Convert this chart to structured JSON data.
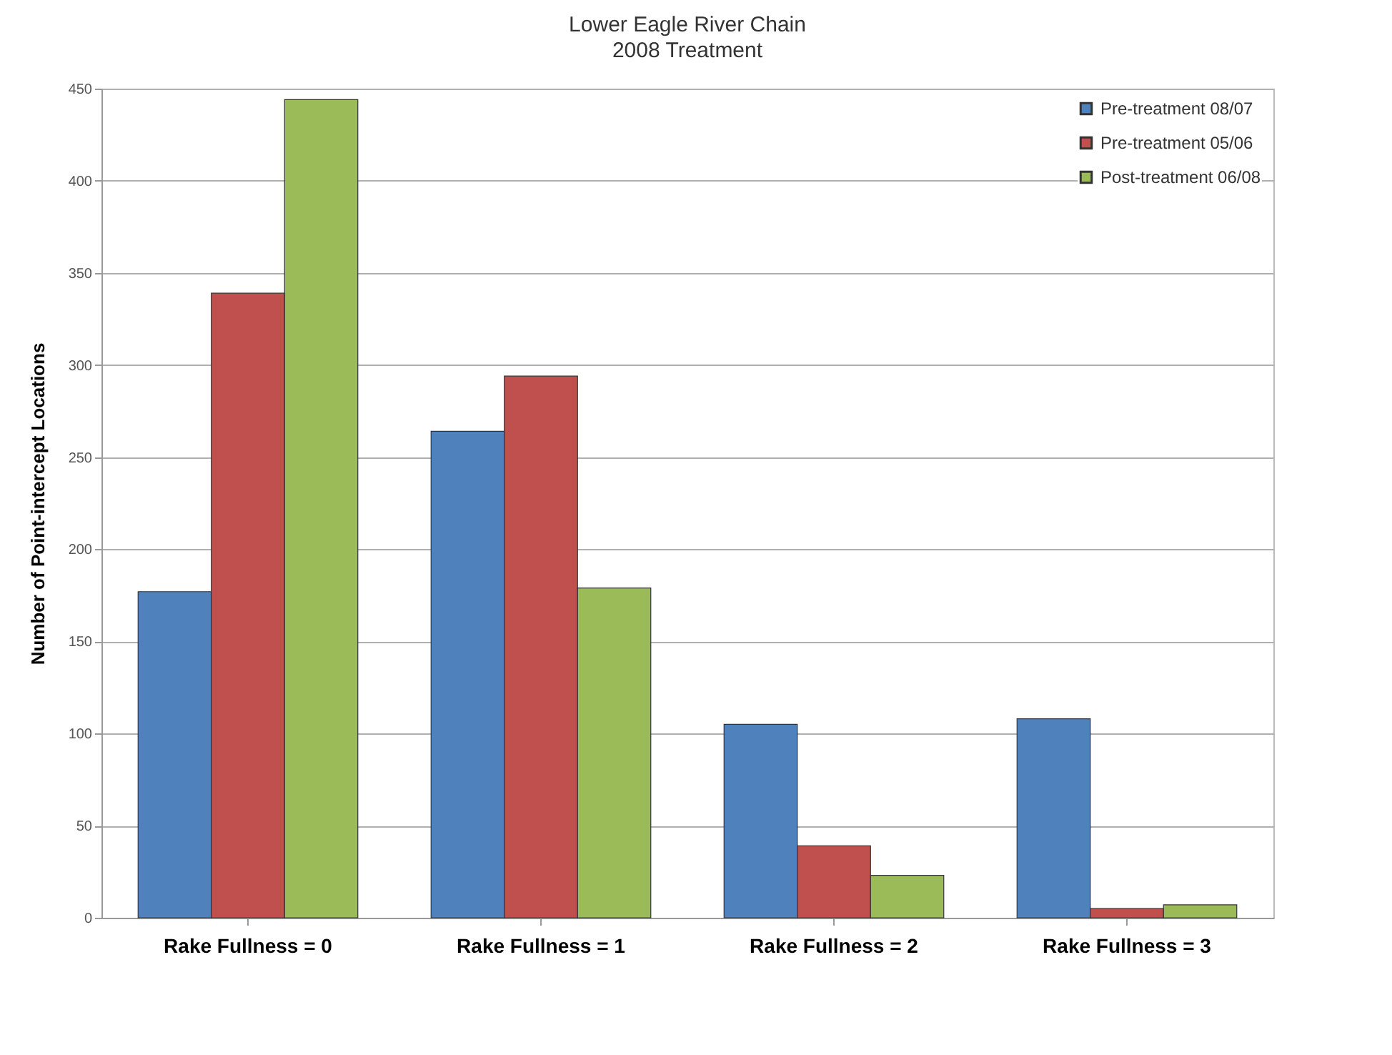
{
  "chart_data": {
    "type": "bar",
    "title": "Lower Eagle River Chain",
    "subtitle": "2008 Treatment",
    "ylabel": "Number of Point-intercept Locations",
    "categories": [
      "Rake Fullness = 0",
      "Rake Fullness = 1",
      "Rake Fullness = 2",
      "Rake Fullness = 3"
    ],
    "series": [
      {
        "name": "Pre-treatment 08/07",
        "color": "#4f81bd",
        "values": [
          177,
          264,
          105,
          108
        ]
      },
      {
        "name": "Pre-treatment 05/06",
        "color": "#c0504d",
        "values": [
          339,
          294,
          39,
          5
        ]
      },
      {
        "name": "Post-treatment 06/08",
        "color": "#9bbb59",
        "values": [
          444,
          179,
          23,
          7
        ]
      }
    ],
    "ylim": [
      0,
      450
    ],
    "yticks": [
      0,
      50,
      100,
      150,
      200,
      250,
      300,
      350,
      400,
      450
    ],
    "grid": "y",
    "legend": "top right"
  }
}
